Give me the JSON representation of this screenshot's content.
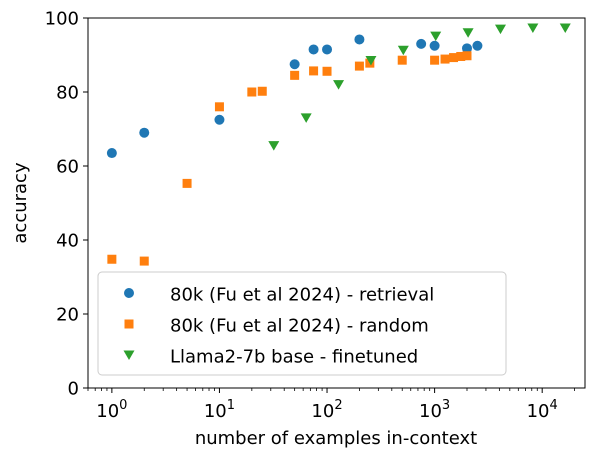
{
  "chart_data": {
    "type": "scatter",
    "xscale": "log",
    "xlabel": "number of examples in-context",
    "ylabel": "accuracy",
    "xlim": [
      0.6,
      25000
    ],
    "ylim": [
      0,
      100
    ],
    "yticks": [
      0,
      20,
      40,
      60,
      80,
      100
    ],
    "xticks": [
      {
        "value": 1,
        "base": "10",
        "exp": "0"
      },
      {
        "value": 10,
        "base": "10",
        "exp": "1"
      },
      {
        "value": 100,
        "base": "10",
        "exp": "2"
      },
      {
        "value": 1000,
        "base": "10",
        "exp": "3"
      },
      {
        "value": 10000,
        "base": "10",
        "exp": "4"
      }
    ],
    "legend_position": "lower-left",
    "series": [
      {
        "name": "80k (Fu et al 2024) - retrieval",
        "color": "#1f77b4",
        "marker": "circle",
        "points": [
          [
            1,
            63.5
          ],
          [
            2,
            69
          ],
          [
            10,
            72.5
          ],
          [
            50,
            87.5
          ],
          [
            75,
            91.5
          ],
          [
            100,
            91.5
          ],
          [
            200,
            94.2
          ],
          [
            750,
            93
          ],
          [
            1000,
            92.5
          ],
          [
            2000,
            91.8
          ],
          [
            2500,
            92.5
          ]
        ]
      },
      {
        "name": "80k (Fu et al 2024) - random",
        "color": "#ff7f0e",
        "marker": "square",
        "points": [
          [
            1,
            34.8
          ],
          [
            2,
            34.3
          ],
          [
            5,
            55.3
          ],
          [
            10,
            76
          ],
          [
            20,
            80
          ],
          [
            25,
            80.2
          ],
          [
            50,
            84.5
          ],
          [
            75,
            85.7
          ],
          [
            100,
            85.6
          ],
          [
            200,
            87
          ],
          [
            250,
            87.8
          ],
          [
            500,
            88.6
          ],
          [
            1000,
            88.6
          ],
          [
            1250,
            88.9
          ],
          [
            1500,
            89.3
          ],
          [
            1750,
            89.6
          ],
          [
            2000,
            89.8
          ]
        ]
      },
      {
        "name": "Llama2-7b base - finetuned",
        "color": "#2ca02c",
        "marker": "triangle-down",
        "points": [
          [
            32,
            65.5
          ],
          [
            64,
            73
          ],
          [
            128,
            82
          ],
          [
            256,
            88.5
          ],
          [
            512,
            91.3
          ],
          [
            1024,
            95.1
          ],
          [
            2048,
            96
          ],
          [
            4096,
            97
          ],
          [
            8192,
            97.3
          ],
          [
            16384,
            97.3
          ]
        ]
      }
    ]
  }
}
